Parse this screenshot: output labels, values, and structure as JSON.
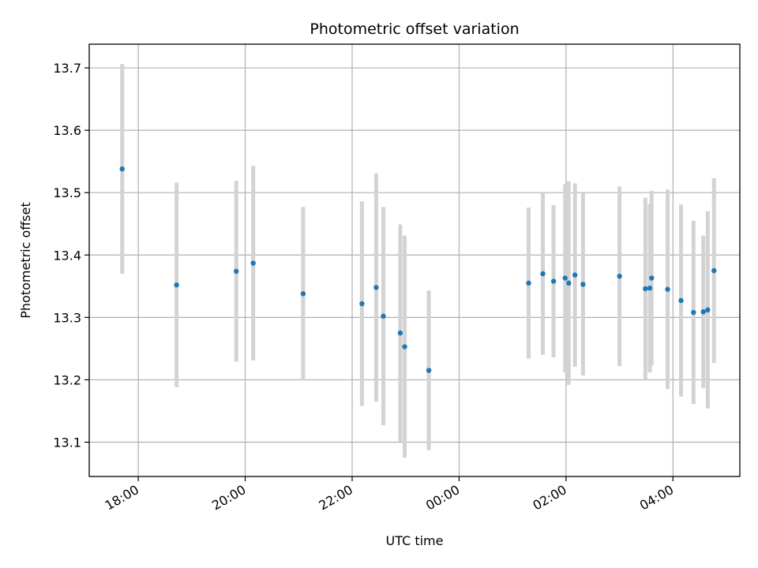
{
  "chart_data": {
    "type": "scatter",
    "title": "Photometric offset variation",
    "xlabel": "UTC time",
    "ylabel": "Photometric offset",
    "x_axis_type": "time",
    "x_base_date": "Day 1",
    "xlim": [
      "17:05",
      "29:15"
    ],
    "ylim": [
      13.045,
      13.738
    ],
    "grid": true,
    "legend": "none",
    "x_ticks": [
      "18:00",
      "20:00",
      "22:00",
      "00:00",
      "02:00",
      "04:00"
    ],
    "y_ticks": [
      13.1,
      13.2,
      13.3,
      13.4,
      13.5,
      13.6,
      13.7
    ],
    "colors": {
      "point": "#1f77b4",
      "errorbar": "#d3d3d3",
      "grid": "#b0b0b0"
    },
    "series": [
      {
        "points": [
          {
            "time": "17:42",
            "y": 13.538,
            "err": 0.168
          },
          {
            "time": "18:43",
            "y": 13.352,
            "err": 0.164
          },
          {
            "time": "19:50",
            "y": 13.374,
            "err": 0.145
          },
          {
            "time": "20:09",
            "y": 13.387,
            "err": 0.156
          },
          {
            "time": "21:05",
            "y": 13.338,
            "err": 0.139
          },
          {
            "time": "22:11",
            "y": 13.322,
            "err": 0.164
          },
          {
            "time": "22:27",
            "y": 13.348,
            "err": 0.183
          },
          {
            "time": "22:35",
            "y": 13.302,
            "err": 0.175
          },
          {
            "time": "22:54",
            "y": 13.275,
            "err": 0.174
          },
          {
            "time": "22:59",
            "y": 13.253,
            "err": 0.178
          },
          {
            "time": "23:26",
            "y": 13.215,
            "err": 0.128
          },
          {
            "time": "01:18",
            "y": 13.355,
            "err": 0.121
          },
          {
            "time": "01:34",
            "y": 13.37,
            "err": 0.13
          },
          {
            "time": "01:46",
            "y": 13.358,
            "err": 0.122
          },
          {
            "time": "01:59",
            "y": 13.363,
            "err": 0.151
          },
          {
            "time": "02:03",
            "y": 13.355,
            "err": 0.163
          },
          {
            "time": "02:10",
            "y": 13.368,
            "err": 0.147
          },
          {
            "time": "02:19",
            "y": 13.353,
            "err": 0.146
          },
          {
            "time": "03:00",
            "y": 13.366,
            "err": 0.144
          },
          {
            "time": "03:29",
            "y": 13.346,
            "err": 0.146
          },
          {
            "time": "03:34",
            "y": 13.347,
            "err": 0.135
          },
          {
            "time": "03:36",
            "y": 13.363,
            "err": 0.14
          },
          {
            "time": "03:54",
            "y": 13.345,
            "err": 0.16
          },
          {
            "time": "04:09",
            "y": 13.327,
            "err": 0.154
          },
          {
            "time": "04:23",
            "y": 13.308,
            "err": 0.147
          },
          {
            "time": "04:34",
            "y": 13.309,
            "err": 0.122
          },
          {
            "time": "04:39",
            "y": 13.312,
            "err": 0.158
          },
          {
            "time": "04:46",
            "y": 13.375,
            "err": 0.148
          }
        ]
      }
    ]
  }
}
